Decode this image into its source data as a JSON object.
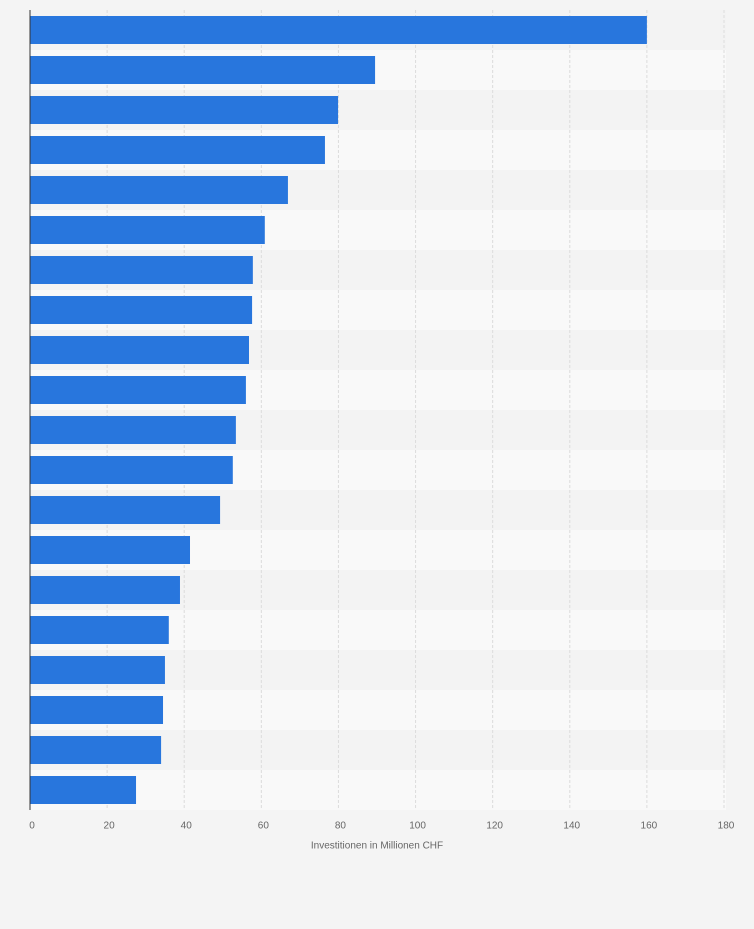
{
  "chart_data": {
    "type": "bar",
    "orientation": "horizontal",
    "categories": [
      null,
      null,
      null,
      null,
      null,
      null,
      null,
      null,
      null,
      null,
      null,
      null,
      null,
      null,
      null,
      null,
      null,
      null,
      null,
      null
    ],
    "values": [
      160.0,
      89.5,
      79.9,
      76.5,
      66.9,
      60.9,
      57.8,
      57.6,
      56.8,
      56.0,
      53.4,
      52.6,
      49.3,
      41.5,
      38.9,
      36.0,
      35.0,
      34.5,
      34.0,
      27.5
    ],
    "color": "#2876dd",
    "xlabel": "Investitionen in Millionen CHF",
    "xlim": [
      0,
      180
    ],
    "xticks": [
      0,
      20,
      40,
      60,
      80,
      100,
      120,
      140,
      160,
      180
    ],
    "grid": true
  }
}
